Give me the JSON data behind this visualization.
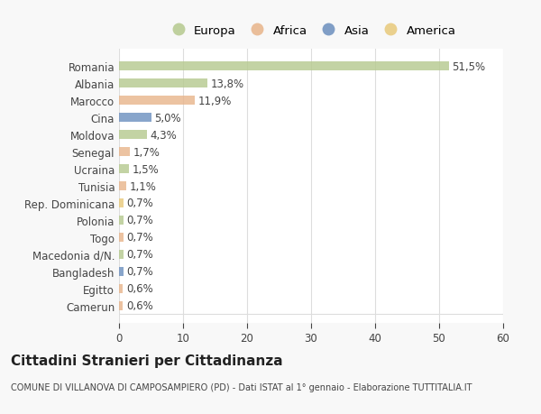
{
  "categories": [
    "Romania",
    "Albania",
    "Marocco",
    "Cina",
    "Moldova",
    "Senegal",
    "Ucraina",
    "Tunisia",
    "Rep. Dominicana",
    "Polonia",
    "Togo",
    "Macedonia d/N.",
    "Bangladesh",
    "Egitto",
    "Camerun"
  ],
  "values": [
    51.5,
    13.8,
    11.9,
    5.0,
    4.3,
    1.7,
    1.5,
    1.1,
    0.7,
    0.7,
    0.7,
    0.7,
    0.7,
    0.6,
    0.6
  ],
  "labels": [
    "51,5%",
    "13,8%",
    "11,9%",
    "5,0%",
    "4,3%",
    "1,7%",
    "1,5%",
    "1,1%",
    "0,7%",
    "0,7%",
    "0,7%",
    "0,7%",
    "0,7%",
    "0,6%",
    "0,6%"
  ],
  "colors": [
    "#b5c98e",
    "#b5c98e",
    "#e8b48a",
    "#6b8fbe",
    "#b5c98e",
    "#e8b48a",
    "#b5c98e",
    "#e8b48a",
    "#e8c97a",
    "#b5c98e",
    "#e8b48a",
    "#b5c98e",
    "#6b8fbe",
    "#e8b48a",
    "#e8b48a"
  ],
  "continent_colors": {
    "Europa": "#b5c98e",
    "Africa": "#e8b48a",
    "Asia": "#6b8fbe",
    "America": "#e8c97a"
  },
  "legend_labels": [
    "Europa",
    "Africa",
    "Asia",
    "America"
  ],
  "title": "Cittadini Stranieri per Cittadinanza",
  "subtitle": "COMUNE DI VILLANOVA DI CAMPOSAMPIERO (PD) - Dati ISTAT al 1° gennaio - Elaborazione TUTTITALIA.IT",
  "xlim": [
    0,
    60
  ],
  "xticks": [
    0,
    10,
    20,
    30,
    40,
    50,
    60
  ],
  "background_color": "#f8f8f8",
  "plot_background": "#ffffff",
  "grid_color": "#dddddd",
  "text_color": "#444444",
  "label_fontsize": 8.5,
  "tick_fontsize": 8.5,
  "title_fontsize": 11,
  "subtitle_fontsize": 7
}
